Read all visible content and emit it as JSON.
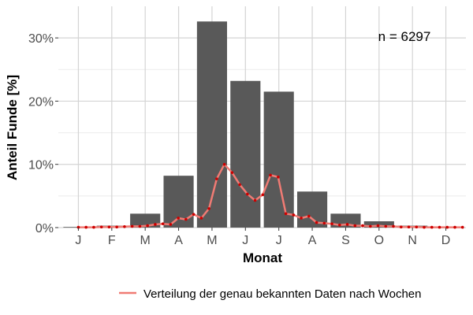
{
  "chart_data": {
    "type": "bar",
    "xlabel": "Monat",
    "ylabel": "Anteil Funde [%]",
    "annotation": "n = 6297",
    "categories": [
      "J",
      "F",
      "M",
      "A",
      "M",
      "J",
      "J",
      "A",
      "S",
      "O",
      "N",
      "D"
    ],
    "values": [
      0.1,
      0.3,
      2.2,
      8.2,
      32.6,
      23.2,
      21.5,
      5.7,
      2.2,
      1.0,
      0.3,
      0.1
    ],
    "ylim": [
      0,
      35
    ],
    "yticks": [
      0,
      10,
      20,
      30
    ],
    "ytick_labels": [
      "0%",
      "10%",
      "20%",
      "30%"
    ],
    "grid": true,
    "bar_color": "#595959",
    "line_series": {
      "name": "Verteilung der genau bekannten Daten nach Wochen",
      "color": "#f07b74",
      "point_color": "#cc0000",
      "x_month": [
        1.0,
        1.23,
        1.46,
        1.69,
        1.92,
        2.15,
        2.38,
        2.61,
        2.84,
        3.07,
        3.3,
        3.53,
        3.76,
        3.99,
        4.22,
        4.45,
        4.68,
        4.91,
        5.14,
        5.37,
        5.6,
        5.83,
        6.06,
        6.29,
        6.52,
        6.75,
        6.98,
        7.21,
        7.44,
        7.67,
        7.9,
        8.13,
        8.36,
        8.59,
        8.82,
        9.05,
        9.28,
        9.51,
        9.74,
        9.97,
        10.2,
        10.43,
        10.66,
        10.89,
        11.12,
        11.35,
        11.58,
        11.81,
        12.04,
        12.27,
        12.5
      ],
      "values": [
        0.05,
        0.05,
        0.05,
        0.1,
        0.1,
        0.1,
        0.15,
        0.2,
        0.2,
        0.3,
        0.5,
        0.6,
        0.5,
        1.5,
        1.3,
        2.1,
        1.5,
        3.0,
        7.7,
        10.0,
        8.7,
        6.8,
        5.3,
        4.3,
        5.2,
        8.3,
        8.0,
        2.2,
        2.0,
        1.5,
        1.8,
        0.8,
        0.7,
        0.6,
        0.4,
        0.5,
        0.3,
        0.3,
        0.2,
        0.3,
        0.2,
        0.2,
        0.1,
        0.1,
        0.1,
        0.05,
        0.05,
        0.05,
        0.05,
        0.05,
        0.05
      ]
    }
  }
}
